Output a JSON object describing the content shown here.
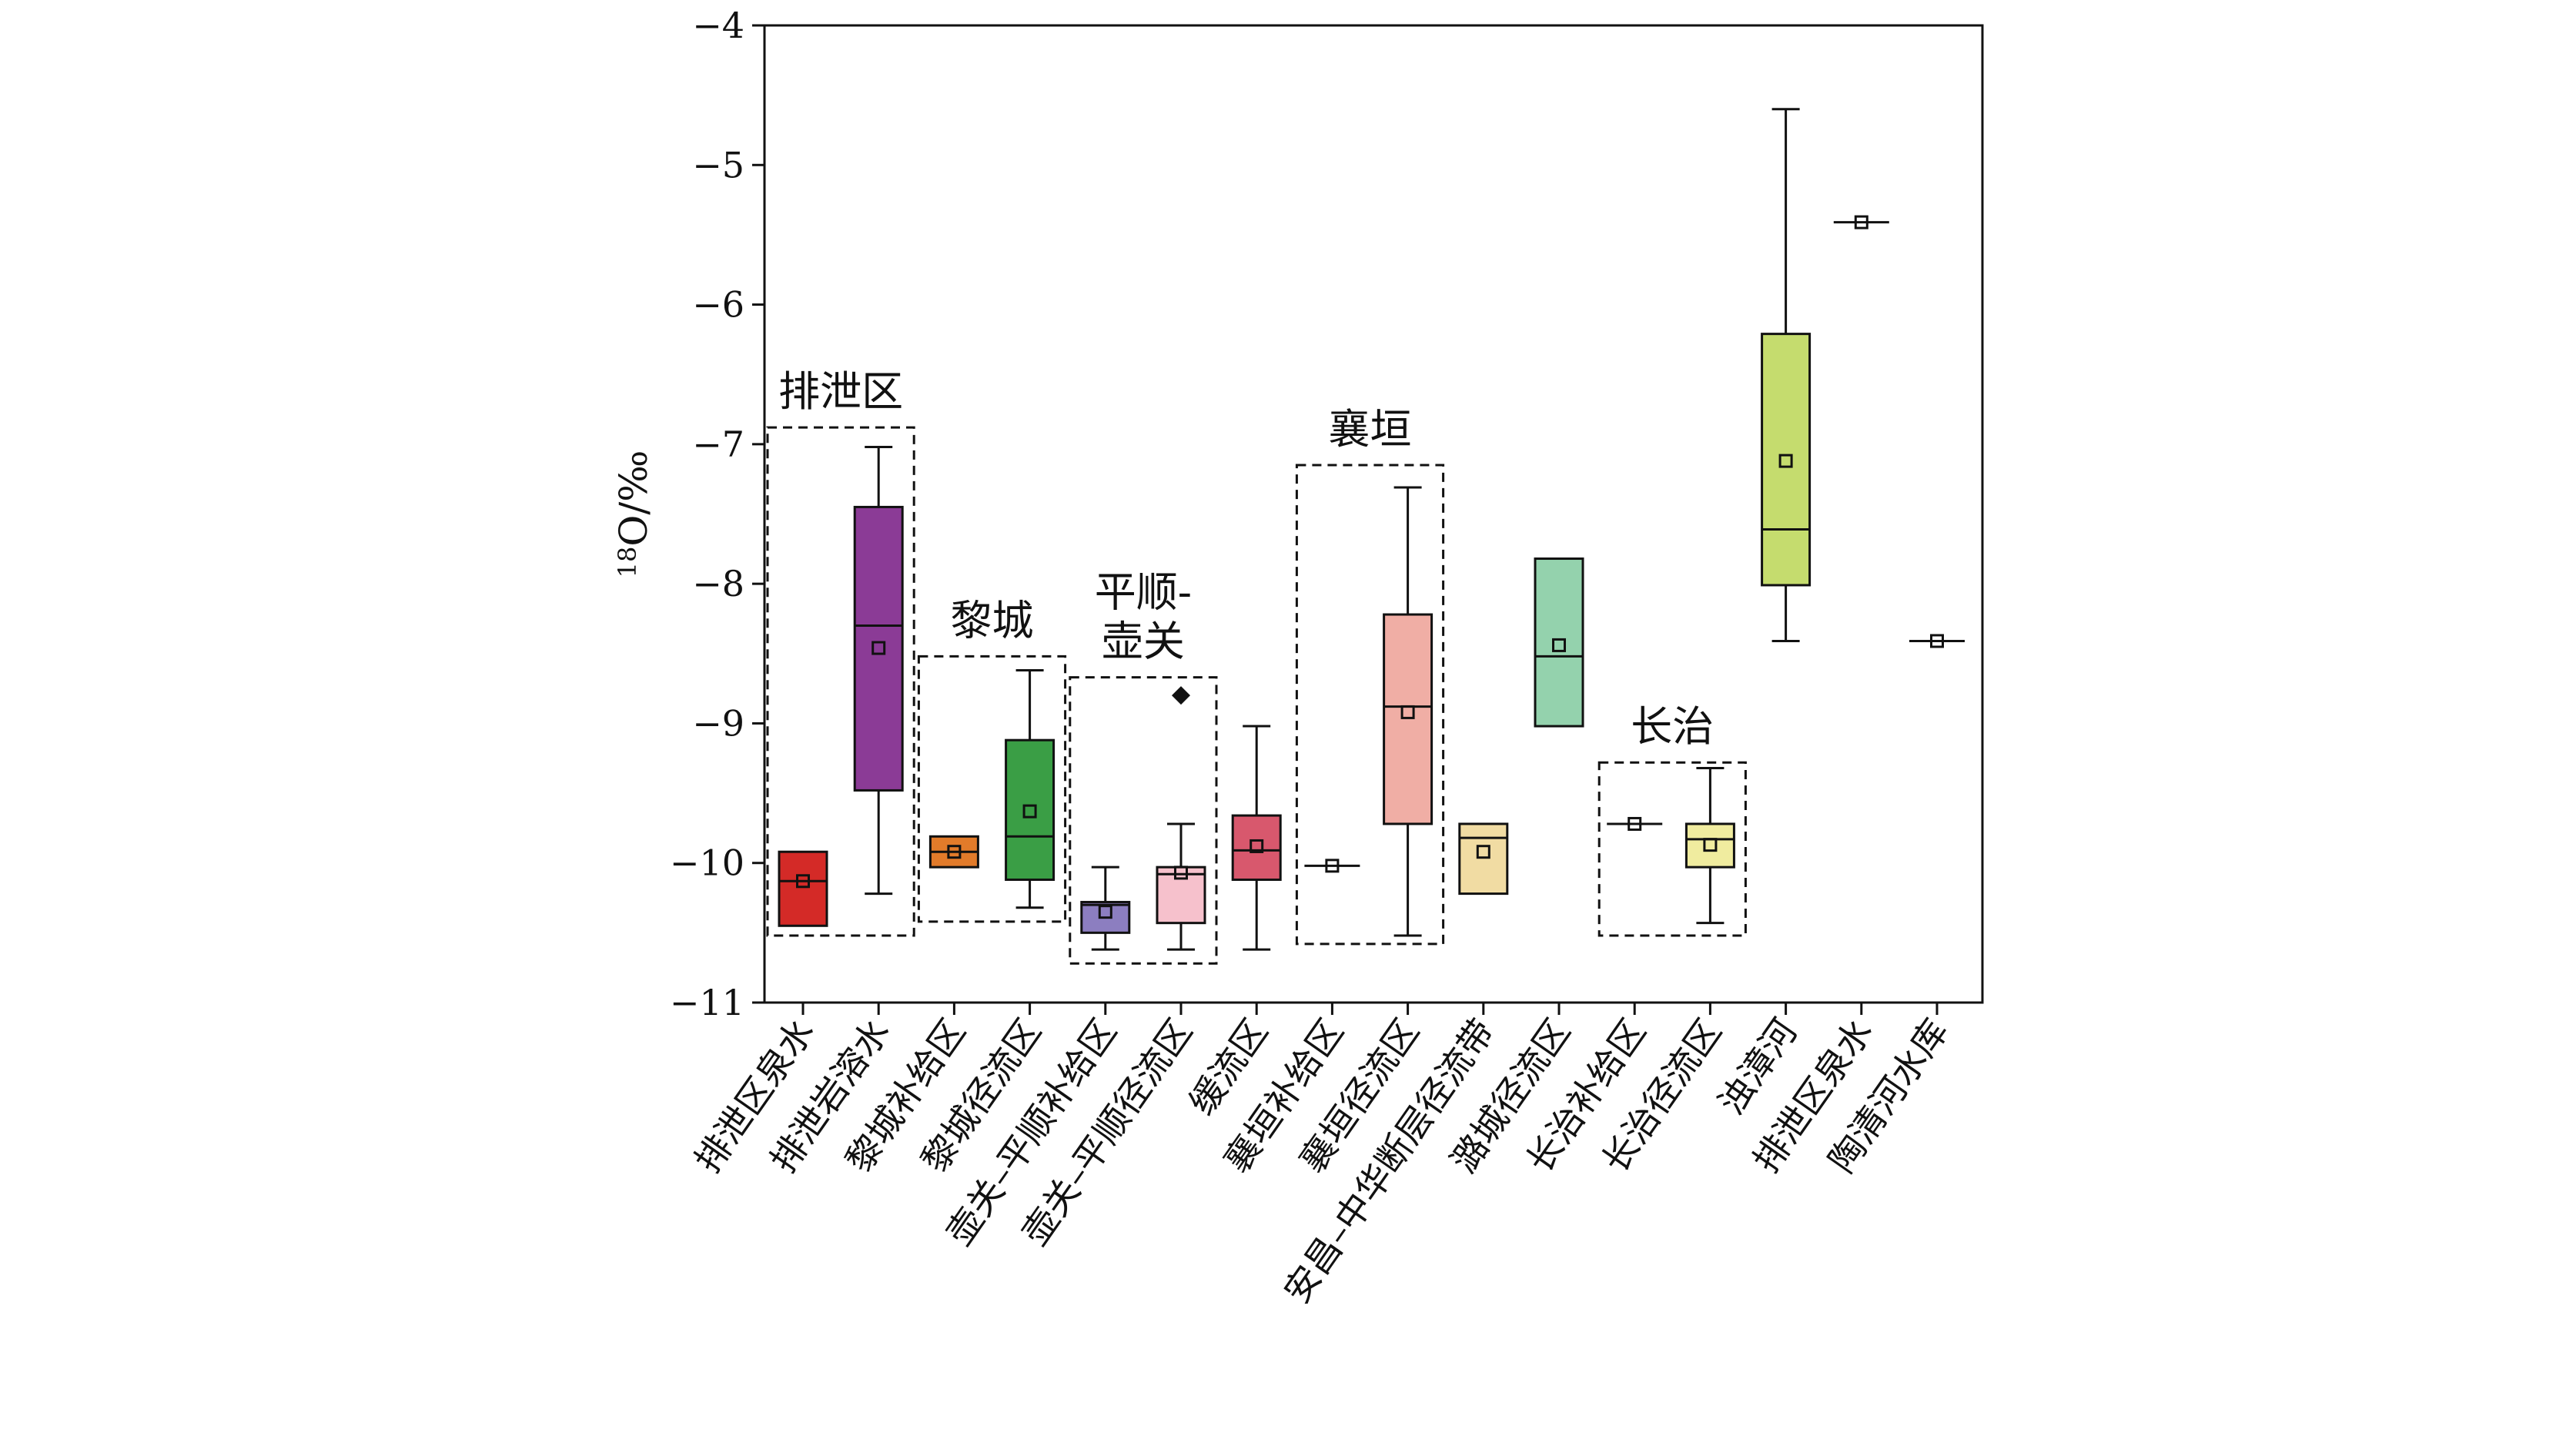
{
  "chart_data": {
    "type": "boxplot",
    "title": "",
    "xlabel": "",
    "ylabel": "18O/‰",
    "ylabel_parts": {
      "superscript": "18",
      "main": "O/‰"
    },
    "ylim": [
      -11,
      -4
    ],
    "yticks": [
      -4,
      -5,
      -6,
      -7,
      -8,
      -9,
      -10,
      -11
    ],
    "ytick_labels": [
      "−4",
      "−5",
      "−6",
      "−7",
      "−8",
      "−9",
      "−10",
      "−11"
    ],
    "categories": [
      "排泄区泉水",
      "排泄岩溶水",
      "黎城补给区",
      "黎城径流区",
      "壶关–平顺补给区",
      "壶关–平顺径流区",
      "缓流区",
      "襄垣补给区",
      "襄垣径流区",
      "安昌–中华断层径流带",
      "潞城径流区",
      "长治补给区",
      "长治径流区",
      "浊漳河",
      "排泄区泉水",
      "陶清河水库"
    ],
    "boxes": [
      {
        "category": "排泄区泉水",
        "whisker_low": -10.45,
        "q1": -10.45,
        "median": -10.13,
        "q3": -9.92,
        "whisker_high": -9.92,
        "mean": -10.13,
        "color": "#d42a27",
        "outliers": []
      },
      {
        "category": "排泄岩溶水",
        "whisker_low": -10.22,
        "q1": -9.48,
        "median": -8.3,
        "q3": -7.45,
        "whisker_high": -7.02,
        "mean": -8.46,
        "color": "#8b3b96",
        "outliers": []
      },
      {
        "category": "黎城补给区",
        "whisker_low": -10.03,
        "q1": -10.03,
        "median": -9.92,
        "q3": -9.81,
        "whisker_high": -9.81,
        "mean": -9.92,
        "color": "#e27b2a",
        "outliers": []
      },
      {
        "category": "黎城径流区",
        "whisker_low": -10.32,
        "q1": -10.12,
        "median": -9.81,
        "q3": -9.12,
        "whisker_high": -8.62,
        "mean": -9.63,
        "color": "#3a9e45",
        "outliers": []
      },
      {
        "category": "壶关–平顺补给区",
        "whisker_low": -10.62,
        "q1": -10.5,
        "median": -10.3,
        "q3": -10.28,
        "whisker_high": -10.03,
        "mean": -10.35,
        "color": "#8c7ec0",
        "outliers": []
      },
      {
        "category": "壶关–平顺径流区",
        "whisker_low": -10.62,
        "q1": -10.43,
        "median": -10.08,
        "q3": -10.03,
        "whisker_high": -9.72,
        "mean": -10.07,
        "color": "#f6c1cc",
        "outliers": [
          -8.8
        ]
      },
      {
        "category": "缓流区",
        "whisker_low": -10.62,
        "q1": -10.12,
        "median": -9.91,
        "q3": -9.66,
        "whisker_high": -9.02,
        "mean": -9.88,
        "color": "#d8586d",
        "outliers": []
      },
      {
        "category": "襄垣补给区",
        "whisker_low": -10.02,
        "q1": -10.02,
        "median": -10.02,
        "q3": -10.02,
        "whisker_high": -10.02,
        "mean": -10.02,
        "color": "#ffffff",
        "outliers": []
      },
      {
        "category": "襄垣径流区",
        "whisker_low": -10.52,
        "q1": -9.72,
        "median": -8.88,
        "q3": -8.22,
        "whisker_high": -7.31,
        "mean": -8.92,
        "color": "#f0aea5",
        "outliers": []
      },
      {
        "category": "安昌–中华断层径流带",
        "whisker_low": -10.22,
        "q1": -10.22,
        "median": -9.82,
        "q3": -9.72,
        "whisker_high": -9.72,
        "mean": -9.92,
        "color": "#f1dca3",
        "outliers": []
      },
      {
        "category": "潞城径流区",
        "whisker_low": -9.02,
        "q1": -9.02,
        "median": -8.52,
        "q3": -7.82,
        "whisker_high": -7.82,
        "mean": -8.44,
        "color": "#94d2ad",
        "outliers": []
      },
      {
        "category": "长治补给区",
        "whisker_low": -9.72,
        "q1": -9.72,
        "median": -9.72,
        "q3": -9.72,
        "whisker_high": -9.72,
        "mean": -9.72,
        "color": "#ffffff",
        "outliers": []
      },
      {
        "category": "长治径流区",
        "whisker_low": -10.43,
        "q1": -10.03,
        "median": -9.83,
        "q3": -9.72,
        "whisker_high": -9.32,
        "mean": -9.87,
        "color": "#f0ec9f",
        "outliers": []
      },
      {
        "category": "浊漳河",
        "whisker_low": -8.41,
        "q1": -8.01,
        "median": -7.61,
        "q3": -6.21,
        "whisker_high": -4.6,
        "mean": -7.12,
        "color": "#c5dc6e",
        "outliers": []
      },
      {
        "category": "排泄区泉水",
        "whisker_low": -5.41,
        "q1": -5.41,
        "median": -5.41,
        "q3": -5.41,
        "whisker_high": -5.41,
        "mean": -5.41,
        "color": "#ffffff",
        "outliers": []
      },
      {
        "category": "陶清河水库",
        "whisker_low": -8.41,
        "q1": -8.41,
        "median": -8.41,
        "q3": -8.41,
        "whisker_high": -8.41,
        "mean": -8.41,
        "color": "#ffffff",
        "outliers": []
      }
    ],
    "groups": [
      {
        "label_lines": [
          "排泄区"
        ],
        "from": 0,
        "to": 1,
        "y_bottom": -10.52,
        "y_top": -6.88
      },
      {
        "label_lines": [
          "黎城"
        ],
        "from": 2,
        "to": 3,
        "y_bottom": -10.42,
        "y_top": -8.52
      },
      {
        "label_lines": [
          "平顺-",
          "壶关"
        ],
        "from": 4,
        "to": 5,
        "y_bottom": -10.72,
        "y_top": -8.67
      },
      {
        "label_lines": [
          "襄垣"
        ],
        "from": 7,
        "to": 8,
        "y_bottom": -10.58,
        "y_top": -7.15
      },
      {
        "label_lines": [
          "长治"
        ],
        "from": 11,
        "to": 12,
        "y_bottom": -10.52,
        "y_top": -9.28
      }
    ]
  }
}
